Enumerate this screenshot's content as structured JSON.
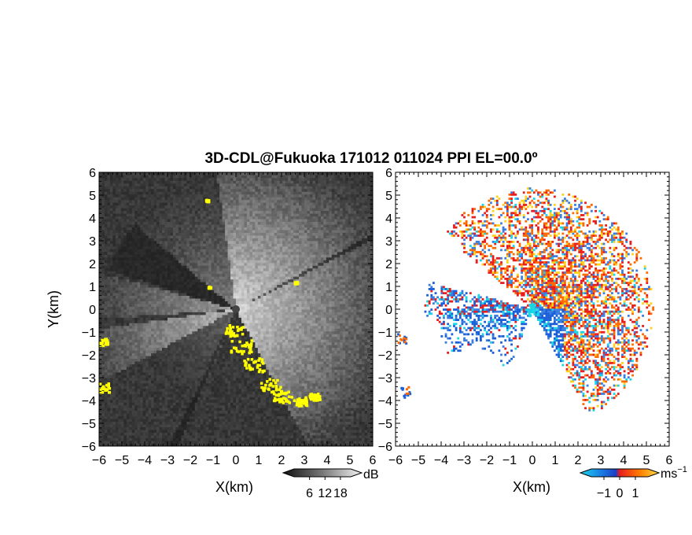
{
  "title": "3D-CDL@Fukuoka 171012 011024 PPI EL=00.0º",
  "chart_data": [
    {
      "type": "heatmap",
      "panel": "left",
      "quantity": "dB",
      "xlabel": "X(km)",
      "ylabel": "Y(km)",
      "xlim": [
        -6,
        6
      ],
      "ylim": [
        -6,
        6
      ],
      "xticks": [
        "−6",
        "−5",
        "−4",
        "−3",
        "−2",
        "−1",
        "0",
        "1",
        "2",
        "3",
        "4",
        "5",
        "6"
      ],
      "yticks": [
        "6",
        "5",
        "4",
        "3",
        "2",
        "1",
        "0",
        "−1",
        "−2",
        "−3",
        "−4",
        "−5",
        "−6"
      ],
      "colorbar": {
        "label": "dB",
        "ticks": [
          "6",
          "12",
          "18"
        ],
        "tick_values": [
          6,
          12,
          18
        ],
        "range": [
          0,
          22
        ]
      },
      "colors": {
        "background": "#222222",
        "echo": "#e8e8e8",
        "highlight": "#ffff00"
      }
    },
    {
      "type": "heatmap",
      "panel": "right",
      "quantity": "ms−1",
      "xlabel": "X(km)",
      "ylabel": "",
      "xlim": [
        -6,
        6
      ],
      "ylim": [
        -6,
        6
      ],
      "xticks": [
        "−6",
        "−5",
        "−4",
        "−3",
        "−2",
        "−1",
        "0",
        "1",
        "2",
        "3",
        "4",
        "5",
        "6"
      ],
      "yticks": [
        "6",
        "5",
        "4",
        "3",
        "2",
        "1",
        "0",
        "−1",
        "−2",
        "−3",
        "−4",
        "−5",
        "−6"
      ],
      "colorbar": {
        "label": "ms",
        "label_exp": "−1",
        "ticks": [
          "−1",
          "0",
          "1"
        ],
        "tick_values": [
          -1,
          0,
          1
        ],
        "range": [
          -1.8,
          1.8
        ]
      },
      "colors": {
        "negative": "#1a5fd8",
        "cyan": "#19d6e6",
        "positive": "#ff6a00",
        "yellow": "#ffd21a",
        "red": "#e81c1c"
      }
    }
  ]
}
